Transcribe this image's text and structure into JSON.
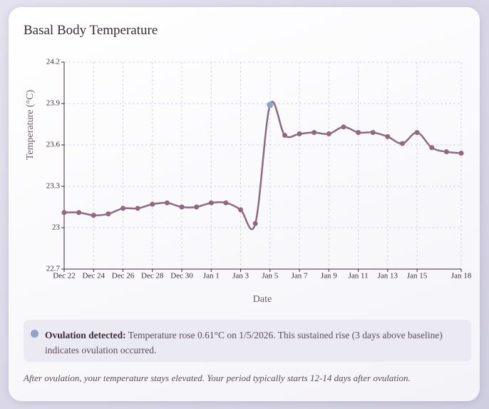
{
  "title": "Basal Body Temperature",
  "chart_data": {
    "type": "line",
    "x_label": "Date",
    "y_label": "Temperature (°C)",
    "categories": [
      "Dec 22",
      null,
      "Dec 24",
      null,
      "Dec 26",
      null,
      "Dec 28",
      null,
      "Dec 30",
      null,
      "Jan 1",
      null,
      "Jan 3",
      null,
      "Jan 5",
      null,
      "Jan 7",
      null,
      "Jan 9",
      null,
      "Jan 11",
      null,
      "Jan 13",
      null,
      "Jan 15",
      null,
      null,
      "Jan 18"
    ],
    "series": [
      {
        "color": "#8e6a80",
        "marker_colors": [
          "#8e6a80",
          "#8e6a80",
          "#8e6a80",
          "#8e6a80",
          "#8e6a80",
          "#8e6a80",
          "#8e6a80",
          "#8e6a80",
          "#8e6a80",
          "#8e6a80",
          "#8e6a80",
          "#8e6a80",
          "#8e6a80",
          "#8e6a80",
          "#8fa3c8",
          "#8e6a80",
          "#8e6a80",
          "#8e6a80",
          "#8e6a80",
          "#8e6a80",
          "#8e6a80",
          "#8e6a80",
          "#8e6a80",
          "#8e6a80",
          "#8e6a80",
          "#8e6a80",
          "#8e6a80",
          "#8e6a80"
        ],
        "values": [
          23.11,
          23.11,
          23.09,
          23.1,
          23.14,
          23.14,
          23.17,
          23.18,
          23.15,
          23.15,
          23.18,
          23.18,
          23.13,
          23.03,
          23.89,
          23.67,
          23.68,
          23.69,
          23.68,
          23.73,
          23.69,
          23.69,
          23.66,
          23.61,
          23.69,
          23.58,
          23.55,
          23.54
        ]
      }
    ],
    "ylim": [
      22.7,
      24.2
    ],
    "yticks": [
      22.7,
      23,
      23.3,
      23.6,
      23.9,
      24.2
    ],
    "grid": true
  },
  "notice": {
    "heading": "Ovulation detected:",
    "text": "Temperature rose 0.61°C on 1/5/2026. This sustained rise (3 days above baseline) indicates ovulation occurred."
  },
  "footnote": "After ovulation, your temperature stays elevated. Your period typically starts 12-14 days after ovulation."
}
